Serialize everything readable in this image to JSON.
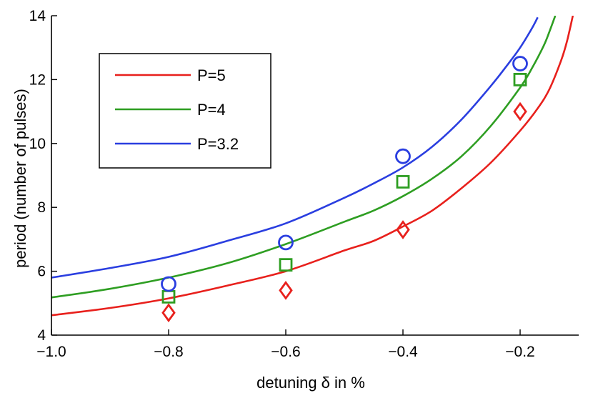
{
  "chart_data": {
    "type": "line",
    "title": "",
    "xlabel": "detuning δ in %",
    "ylabel": "period (number of pulses)",
    "xlim": [
      -1.0,
      -0.1
    ],
    "ylim": [
      4,
      14
    ],
    "xticks": [
      -1.0,
      -0.8,
      -0.6,
      -0.4,
      -0.2
    ],
    "xtick_labels": [
      "−1.0",
      "−0.8",
      "−0.6",
      "−0.4",
      "−0.2"
    ],
    "yticks": [
      4,
      6,
      8,
      10,
      12,
      14
    ],
    "ytick_labels": [
      "4",
      "6",
      "8",
      "10",
      "12",
      "14"
    ],
    "grid": false,
    "legend_position": "top-left",
    "series": [
      {
        "name": "P=5",
        "color": "#e8201c",
        "marker": "diamond",
        "curve_x": [
          -1.0,
          -0.9,
          -0.8,
          -0.7,
          -0.6,
          -0.5,
          -0.45,
          -0.4,
          -0.35,
          -0.3,
          -0.25,
          -0.2,
          -0.17,
          -0.15,
          -0.13,
          -0.12,
          -0.11
        ],
        "curve_y": [
          4.62,
          4.85,
          5.15,
          5.55,
          6.0,
          6.65,
          6.95,
          7.4,
          7.9,
          8.6,
          9.4,
          10.4,
          11.1,
          11.7,
          12.6,
          13.2,
          14.0
        ],
        "points_x": [
          -0.8,
          -0.6,
          -0.4,
          -0.2
        ],
        "points_y": [
          4.7,
          5.4,
          7.3,
          11.0
        ]
      },
      {
        "name": "P=4",
        "color": "#2e9e22",
        "marker": "square",
        "curve_x": [
          -1.0,
          -0.9,
          -0.8,
          -0.7,
          -0.6,
          -0.5,
          -0.45,
          -0.4,
          -0.35,
          -0.3,
          -0.25,
          -0.2,
          -0.18,
          -0.16,
          -0.15,
          -0.14
        ],
        "curve_y": [
          5.18,
          5.45,
          5.8,
          6.25,
          6.85,
          7.55,
          7.9,
          8.35,
          8.9,
          9.6,
          10.55,
          11.75,
          12.35,
          13.05,
          13.5,
          14.0
        ],
        "points_x": [
          -0.8,
          -0.6,
          -0.4,
          -0.2
        ],
        "points_y": [
          5.2,
          6.2,
          8.8,
          12.0
        ]
      },
      {
        "name": "P=3.2",
        "color": "#2a3ee0",
        "marker": "circle",
        "curve_x": [
          -1.0,
          -0.9,
          -0.8,
          -0.7,
          -0.6,
          -0.5,
          -0.45,
          -0.4,
          -0.35,
          -0.3,
          -0.25,
          -0.22,
          -0.2,
          -0.18,
          -0.17
        ],
        "curve_y": [
          5.8,
          6.1,
          6.45,
          6.95,
          7.5,
          8.3,
          8.75,
          9.25,
          9.9,
          10.75,
          11.8,
          12.5,
          13.0,
          13.6,
          13.95
        ],
        "points_x": [
          -0.8,
          -0.6,
          -0.4,
          -0.2
        ],
        "points_y": [
          5.6,
          6.9,
          9.6,
          12.5
        ]
      }
    ]
  }
}
